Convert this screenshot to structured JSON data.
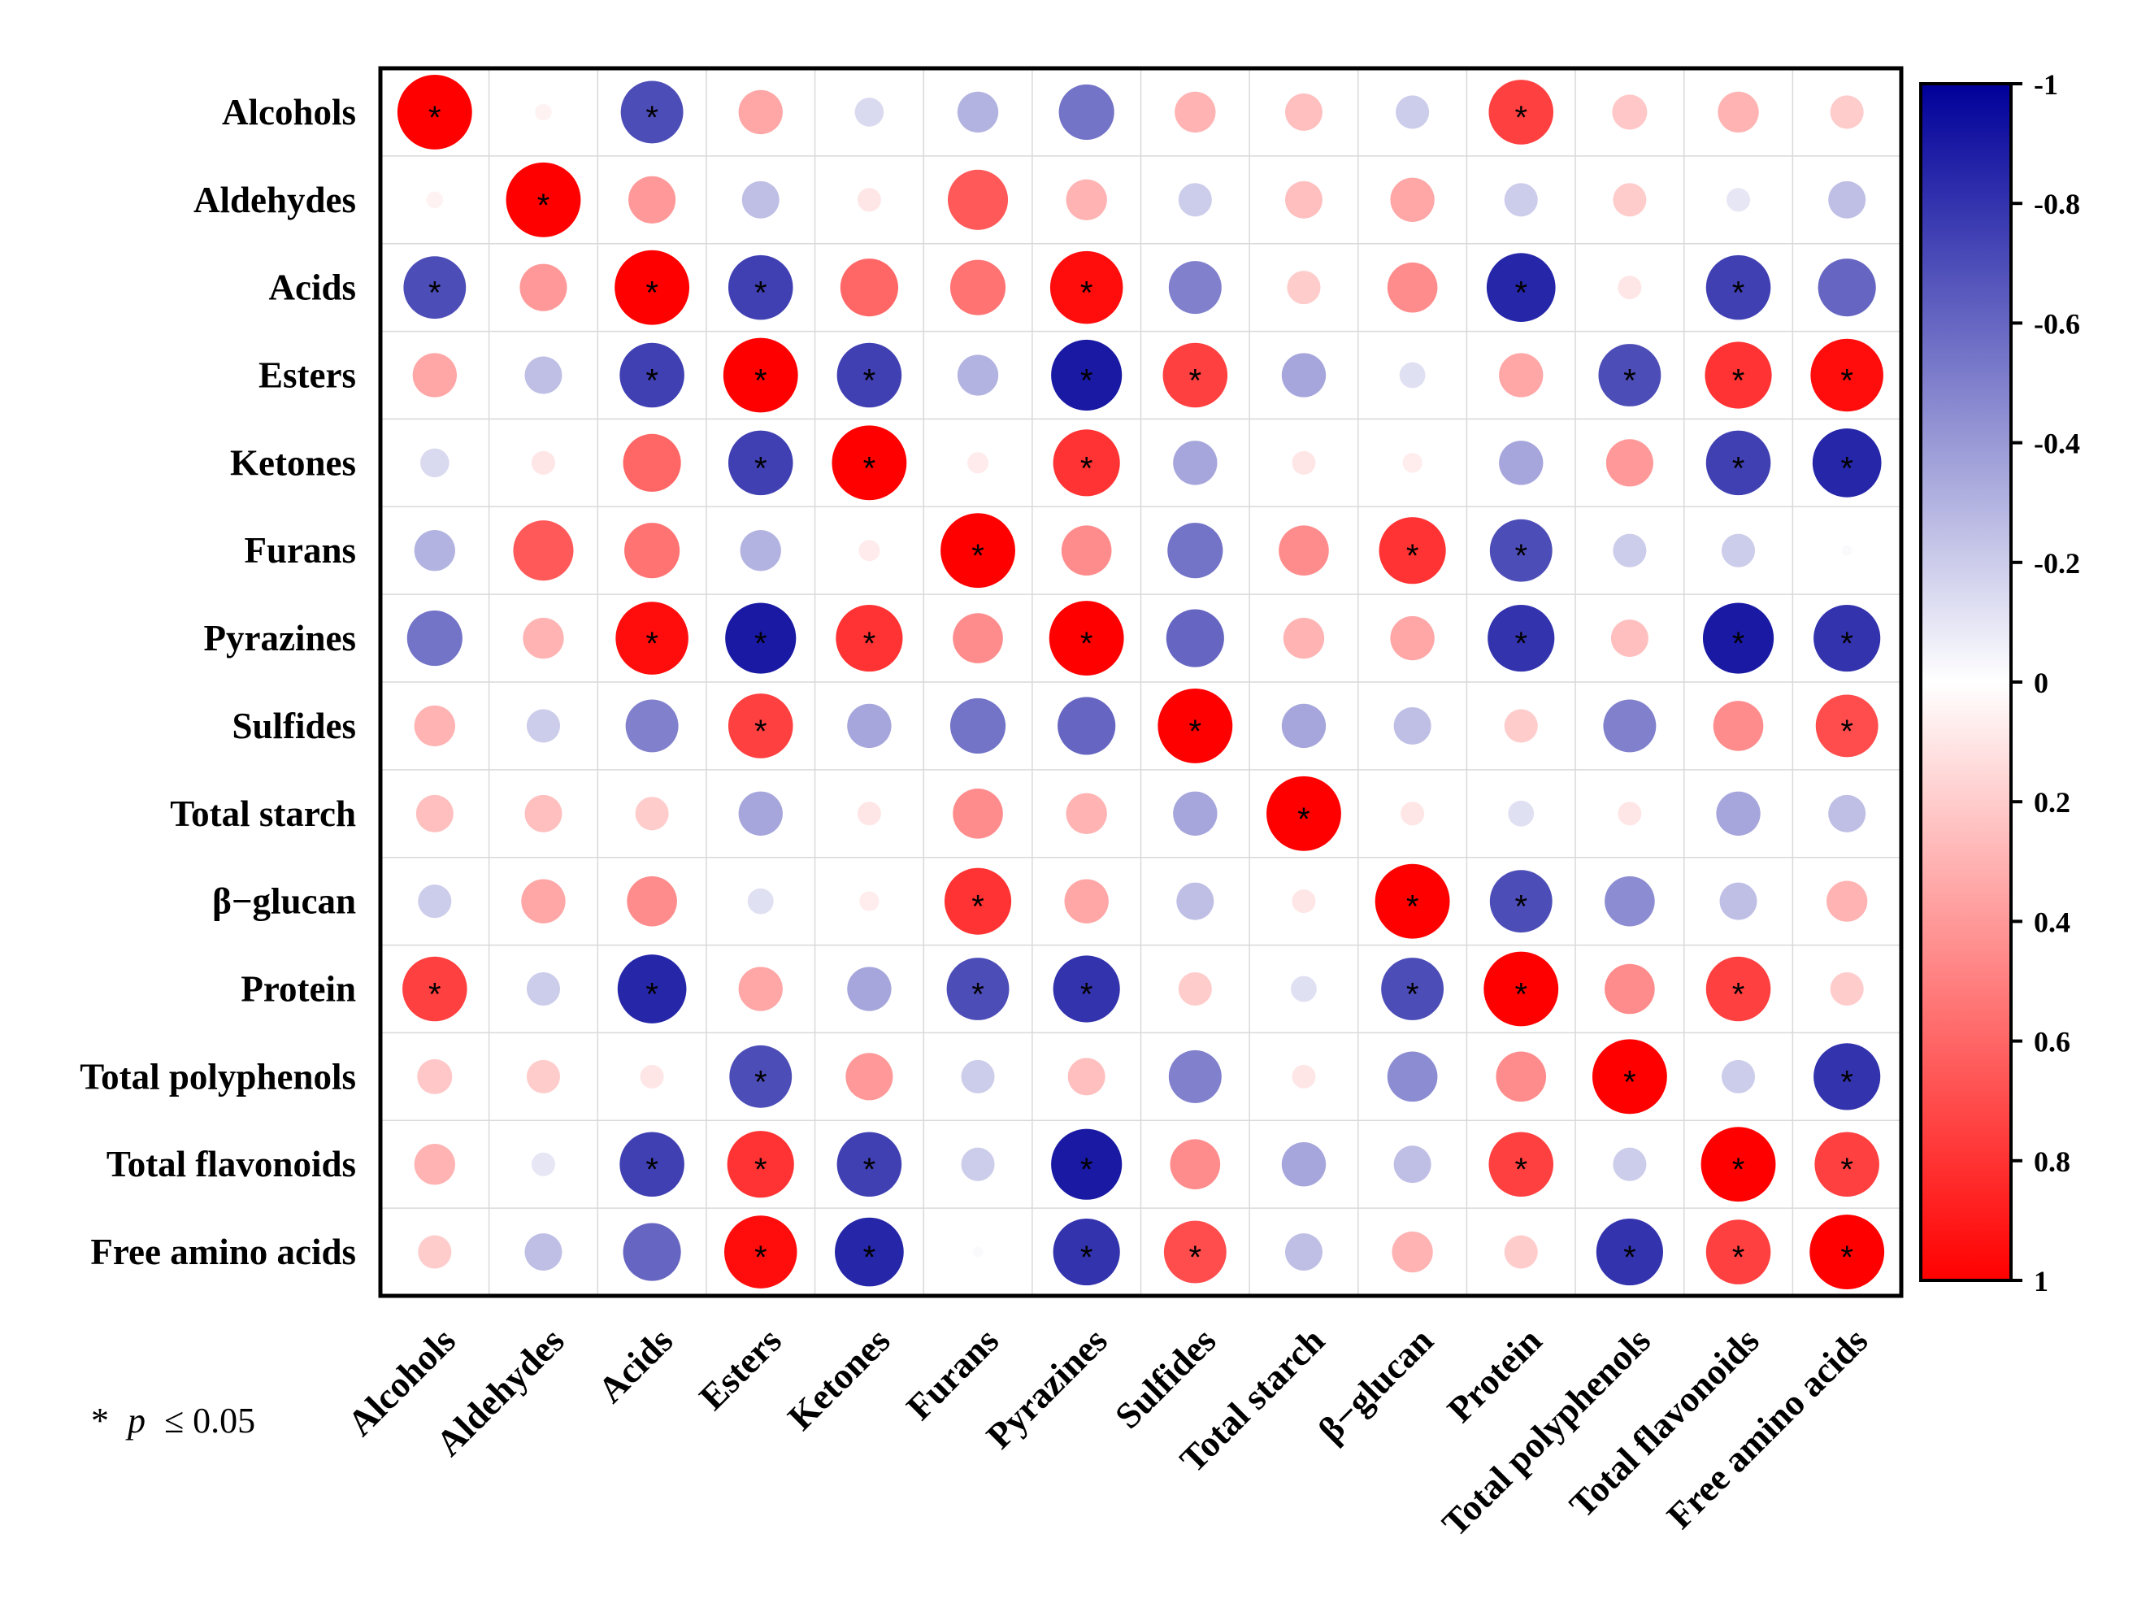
{
  "chart_data": {
    "type": "heatmap",
    "variables": [
      "Alcohols",
      "Aldehydes",
      "Acids",
      "Esters",
      "Ketones",
      "Furans",
      "Pyrazines",
      "Sulfides",
      "Total starch",
      "β−glucan",
      "Protein",
      "Total polyphenols",
      "Total flavonoids",
      "Free amino acids"
    ],
    "row_labels": [
      "Alcohols",
      "Aldehydes",
      "Acids",
      "Esters",
      "Ketones",
      "Furans",
      "Pyrazines",
      "Sulfides",
      "Total starch",
      "β−glucan",
      "Protein",
      "Total polyphenols",
      "Total flavonoids",
      "Free amino acids"
    ],
    "col_labels": [
      "Alcohols",
      "Aldehydes",
      "Acids",
      "Esters",
      "Ketones",
      "Furans",
      "Pyrazines",
      "Sulfides",
      "Total starch",
      "β−glucan",
      "Protein",
      "Total polyphenols",
      "Total flavonoids",
      "Free amino acids"
    ],
    "matrix": [
      [
        1.0,
        0.05,
        -0.7,
        0.35,
        -0.15,
        -0.3,
        -0.55,
        0.3,
        0.25,
        -0.2,
        0.75,
        0.22,
        0.3,
        0.2
      ],
      [
        0.05,
        1.0,
        0.4,
        -0.25,
        0.1,
        0.65,
        0.3,
        -0.2,
        0.25,
        0.35,
        -0.2,
        0.2,
        -0.1,
        -0.25
      ],
      [
        -0.7,
        0.4,
        1.0,
        -0.75,
        0.6,
        0.55,
        0.95,
        -0.5,
        0.2,
        0.45,
        -0.85,
        0.1,
        -0.75,
        -0.6
      ],
      [
        0.35,
        -0.25,
        -0.75,
        1.0,
        -0.75,
        -0.3,
        -0.9,
        0.75,
        -0.35,
        -0.12,
        0.35,
        -0.7,
        0.8,
        0.95
      ],
      [
        -0.15,
        0.1,
        0.6,
        -0.75,
        1.0,
        0.08,
        0.8,
        -0.35,
        0.1,
        0.07,
        -0.35,
        0.4,
        -0.75,
        -0.85
      ],
      [
        -0.3,
        0.65,
        0.55,
        -0.3,
        0.08,
        1.0,
        0.45,
        -0.55,
        0.45,
        0.8,
        -0.7,
        -0.2,
        -0.2,
        -0.02
      ],
      [
        -0.55,
        0.3,
        0.95,
        -0.9,
        0.8,
        0.45,
        1.0,
        -0.6,
        0.3,
        0.35,
        -0.8,
        0.25,
        -0.9,
        -0.8
      ],
      [
        0.3,
        -0.2,
        -0.5,
        0.75,
        -0.35,
        -0.55,
        -0.6,
        1.0,
        -0.35,
        -0.25,
        0.2,
        -0.5,
        0.45,
        0.7
      ],
      [
        0.25,
        0.25,
        0.2,
        -0.35,
        0.1,
        0.45,
        0.3,
        -0.35,
        1.0,
        0.1,
        -0.12,
        0.1,
        -0.35,
        -0.25
      ],
      [
        -0.2,
        0.35,
        0.45,
        -0.12,
        0.07,
        0.8,
        0.35,
        -0.25,
        0.1,
        1.0,
        -0.7,
        -0.45,
        -0.25,
        0.3
      ],
      [
        0.75,
        -0.2,
        -0.85,
        0.35,
        -0.35,
        -0.7,
        -0.8,
        0.2,
        -0.12,
        -0.7,
        1.0,
        0.45,
        0.75,
        0.2
      ],
      [
        0.22,
        0.2,
        0.1,
        -0.7,
        0.4,
        -0.2,
        0.25,
        -0.5,
        0.1,
        -0.45,
        0.45,
        1.0,
        -0.2,
        -0.8
      ],
      [
        0.3,
        -0.1,
        -0.75,
        0.8,
        -0.75,
        -0.2,
        -0.9,
        0.45,
        -0.35,
        -0.25,
        0.75,
        -0.2,
        1.0,
        0.75
      ],
      [
        0.2,
        -0.25,
        -0.6,
        0.95,
        -0.85,
        -0.02,
        -0.8,
        0.7,
        -0.25,
        0.3,
        0.2,
        -0.8,
        0.75,
        1.0
      ]
    ],
    "significant": [
      [
        1,
        0,
        1,
        0,
        0,
        0,
        0,
        0,
        0,
        0,
        1,
        0,
        0,
        0
      ],
      [
        0,
        1,
        0,
        0,
        0,
        0,
        0,
        0,
        0,
        0,
        0,
        0,
        0,
        0
      ],
      [
        1,
        0,
        1,
        1,
        0,
        0,
        1,
        0,
        0,
        0,
        1,
        0,
        1,
        0
      ],
      [
        0,
        0,
        1,
        1,
        1,
        0,
        1,
        1,
        0,
        0,
        0,
        1,
        1,
        1
      ],
      [
        0,
        0,
        0,
        1,
        1,
        0,
        1,
        0,
        0,
        0,
        0,
        0,
        1,
        1
      ],
      [
        0,
        0,
        0,
        0,
        0,
        1,
        0,
        0,
        0,
        1,
        1,
        0,
        0,
        0
      ],
      [
        0,
        0,
        1,
        1,
        1,
        0,
        1,
        0,
        0,
        0,
        1,
        0,
        1,
        1
      ],
      [
        0,
        0,
        0,
        1,
        0,
        0,
        0,
        1,
        0,
        0,
        0,
        0,
        0,
        1
      ],
      [
        0,
        0,
        0,
        0,
        0,
        0,
        0,
        0,
        1,
        0,
        0,
        0,
        0,
        0
      ],
      [
        0,
        0,
        0,
        0,
        0,
        1,
        0,
        0,
        0,
        1,
        1,
        0,
        0,
        0
      ],
      [
        1,
        0,
        1,
        0,
        0,
        1,
        1,
        0,
        0,
        1,
        1,
        0,
        1,
        0
      ],
      [
        0,
        0,
        0,
        1,
        0,
        0,
        0,
        0,
        0,
        0,
        0,
        1,
        0,
        1
      ],
      [
        0,
        0,
        1,
        1,
        1,
        0,
        1,
        0,
        0,
        0,
        1,
        0,
        1,
        1
      ],
      [
        0,
        0,
        0,
        1,
        1,
        0,
        1,
        1,
        0,
        0,
        0,
        1,
        1,
        1
      ]
    ],
    "significance_marker": "*",
    "significance_note": {
      "marker": "*",
      "var": "p",
      "rest": "≤ 0.05"
    },
    "colorbar": {
      "ticks": [
        "-1",
        "-0.8",
        "-0.6",
        "-0.4",
        "-0.2",
        "0",
        "0.2",
        "0.4",
        "0.6",
        "0.8",
        "1"
      ],
      "range": [
        -1,
        1
      ],
      "colors": {
        "negative": "#00009A",
        "zero": "#FFFFFF",
        "positive": "#FF0000"
      }
    },
    "grid": true
  }
}
